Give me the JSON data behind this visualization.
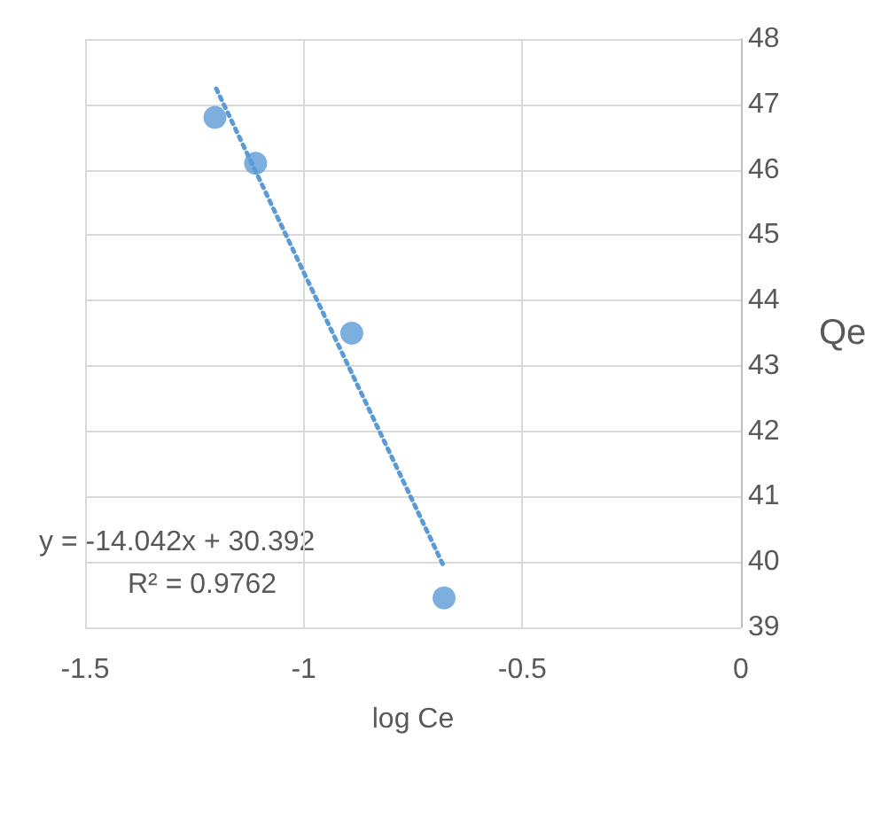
{
  "chart_data": {
    "type": "scatter",
    "xlabel": "log Ce",
    "ylabel": "Qe",
    "x": [
      -1.203,
      -1.11,
      -0.89,
      -0.679
    ],
    "series": [
      {
        "color": "#5b9bd5",
        "values": [
          46.8,
          46.1,
          43.5,
          39.45
        ],
        "marker": "circle"
      },
      {
        "type": "line",
        "color": "#5b9bd5",
        "x": [
          -1.2,
          -0.68
        ],
        "values": [
          47.24,
          39.94
        ],
        "line_style": "dotted",
        "marker": "none"
      }
    ],
    "xlim": [
      -1.5,
      0
    ],
    "xticks": [
      -1.5,
      -1,
      -0.5,
      0
    ],
    "ylim": [
      39,
      48
    ],
    "yticks": [
      39,
      40,
      41,
      42,
      43,
      44,
      45,
      46,
      47,
      48
    ],
    "grid": true,
    "annotations": [
      "y = -14.042x + 30.392",
      "R² = 0.9762"
    ]
  }
}
